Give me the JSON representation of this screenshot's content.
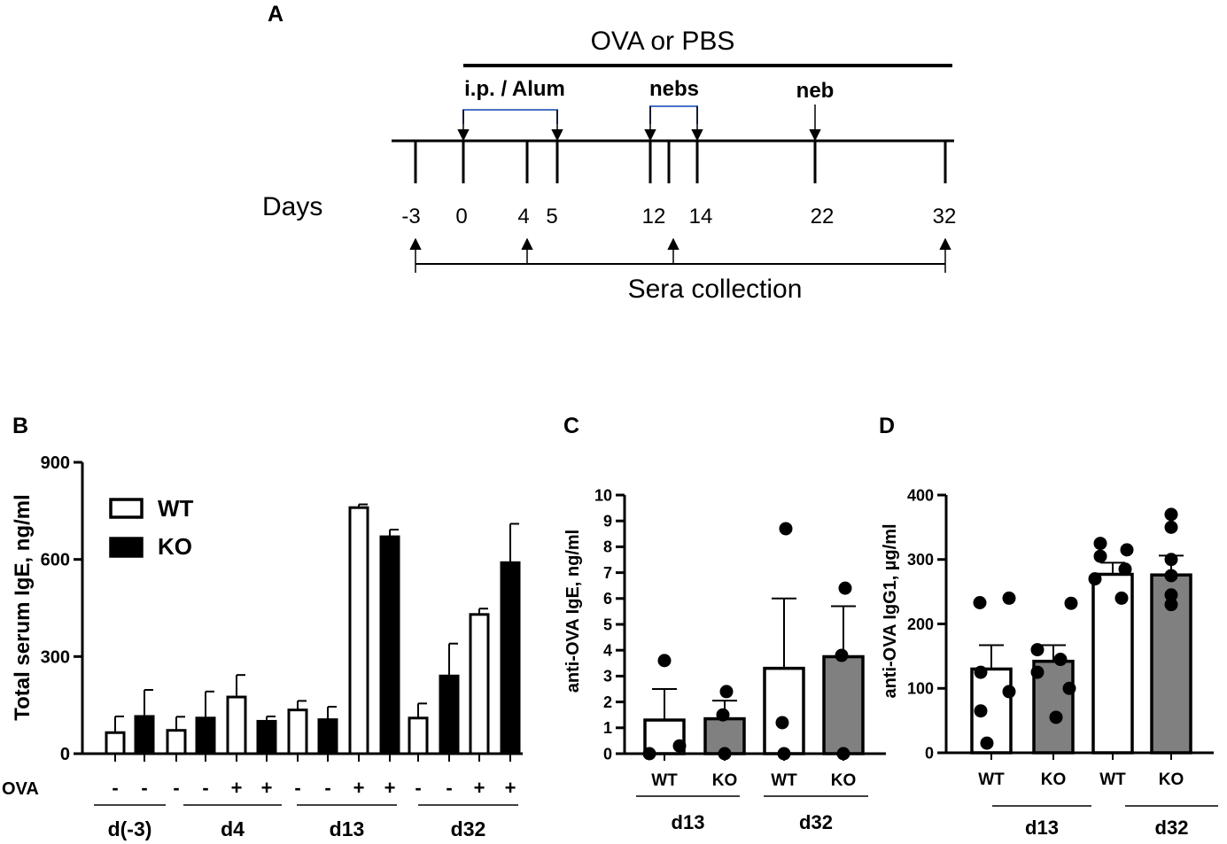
{
  "timeline": {
    "panel": "A",
    "treatment": "OVA or PBS",
    "ip_label": "i.p. / Alum",
    "nebs_label": "nebs",
    "neb_label": "neb",
    "days_label": "Days",
    "sera_label": "Sera collection",
    "day_ticks": [
      "-3",
      "0",
      "4",
      "5",
      "12",
      "14",
      "22",
      "32"
    ],
    "sera_days": [
      -3,
      4,
      13,
      32
    ]
  },
  "colors": {
    "wt_fill": "#ffffff",
    "ko_fill_b": "#000000",
    "ko_fill_cd": "#808080",
    "bracket": "#4a72c4"
  },
  "chart_data": [
    {
      "panel": "B",
      "type": "bar",
      "ylabel": "Total serum IgE, ng/ml",
      "ylim": [
        0,
        900
      ],
      "yticks": [
        "0",
        "300",
        "600",
        "900"
      ],
      "legend": [
        {
          "name": "WT"
        },
        {
          "name": "KO"
        }
      ],
      "legend_position": "top-left",
      "row_label": "OVA",
      "ova_signs": [
        "-",
        "-",
        "-",
        "-",
        "+",
        "+",
        "-",
        "-",
        "+",
        "+",
        "-",
        "-",
        "+",
        "+"
      ],
      "series": [
        {
          "name": "WT",
          "values": [
            65,
            72,
            175,
            135,
            760,
            110,
            430
          ],
          "errors": [
            50,
            42,
            68,
            28,
            10,
            45,
            18
          ]
        },
        {
          "name": "KO",
          "values": [
            115,
            110,
            100,
            105,
            670,
            240,
            590
          ],
          "errors": [
            82,
            82,
            15,
            40,
            22,
            100,
            120
          ]
        }
      ],
      "bar_sequence": [
        "WT",
        "KO",
        "WT",
        "KO",
        "WT",
        "KO",
        "WT",
        "KO",
        "WT",
        "KO",
        "WT",
        "KO",
        "WT",
        "KO"
      ],
      "groups": [
        {
          "label": "d(-3)"
        },
        {
          "label": "d4"
        },
        {
          "label": "d13"
        },
        {
          "label": "d32"
        }
      ]
    },
    {
      "panel": "C",
      "type": "bar",
      "ylabel": "anti-OVA IgE, ng/ml",
      "ylim": [
        0,
        10
      ],
      "yticks": [
        "0",
        "1",
        "2",
        "3",
        "4",
        "5",
        "6",
        "7",
        "8",
        "9",
        "10"
      ],
      "categories": [
        "WT",
        "KO",
        "WT",
        "KO"
      ],
      "values": [
        1.3,
        1.35,
        3.3,
        3.75
      ],
      "errors": [
        1.2,
        0.7,
        2.7,
        1.95
      ],
      "points": [
        [
          3.6,
          0,
          0.3
        ],
        [
          2.4,
          1.5,
          0
        ],
        [
          8.7,
          1.2,
          0
        ],
        [
          6.4,
          3.8,
          0
        ]
      ],
      "groups": [
        {
          "label": "d13"
        },
        {
          "label": "d32"
        }
      ]
    },
    {
      "panel": "D",
      "type": "bar",
      "ylabel": "anti-OVA IgG1, µg/ml",
      "ylim": [
        0,
        400
      ],
      "yticks": [
        "0",
        "100",
        "200",
        "300",
        "400"
      ],
      "categories": [
        "WT",
        "KO",
        "WT",
        "KO"
      ],
      "values": [
        130,
        142,
        277,
        276
      ],
      "errors": [
        37,
        25,
        18,
        30
      ],
      "points": [
        [
          233,
          240,
          125,
          95,
          65,
          15
        ],
        [
          232,
          160,
          145,
          125,
          100,
          55
        ],
        [
          325,
          315,
          305,
          285,
          270,
          240
        ],
        [
          370,
          350,
          300,
          275,
          245,
          230
        ]
      ],
      "groups": [
        {
          "label": "d13"
        },
        {
          "label": "d32"
        }
      ]
    }
  ]
}
